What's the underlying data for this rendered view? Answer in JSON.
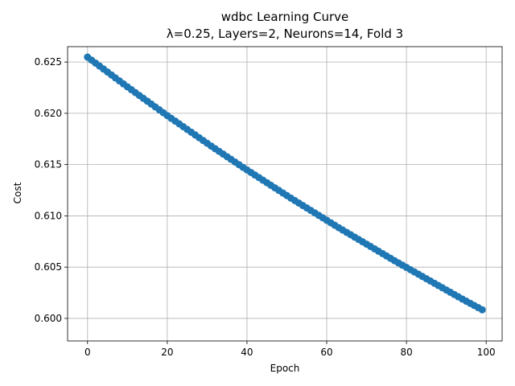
{
  "chart_data": {
    "type": "line",
    "title": "wdbc Learning Curve",
    "subtitle": "λ=0.25, Layers=2, Neurons=14, Fold 3",
    "xlabel": "Epoch",
    "ylabel": "Cost",
    "xlim": [
      -5,
      104
    ],
    "ylim": [
      0.5978,
      0.6265
    ],
    "xticks": [
      0,
      20,
      40,
      60,
      80,
      100
    ],
    "yticks": [
      0.6,
      0.605,
      0.61,
      0.615,
      0.62,
      0.625
    ],
    "ytick_labels": [
      "0.600",
      "0.605",
      "0.610",
      "0.615",
      "0.620",
      "0.625"
    ],
    "grid": true,
    "color": "#1f77b4",
    "marker": "circle",
    "series": [
      {
        "x": [
          0,
          1,
          2,
          3,
          4,
          5,
          6,
          7,
          8,
          9,
          10,
          11,
          12,
          13,
          14,
          15,
          16,
          17,
          18,
          19,
          20,
          21,
          22,
          23,
          24,
          25,
          26,
          27,
          28,
          29,
          30,
          31,
          32,
          33,
          34,
          35,
          36,
          37,
          38,
          39,
          40,
          41,
          42,
          43,
          44,
          45,
          46,
          47,
          48,
          49,
          50,
          51,
          52,
          53,
          54,
          55,
          56,
          57,
          58,
          59,
          60,
          61,
          62,
          63,
          64,
          65,
          66,
          67,
          68,
          69,
          70,
          71,
          72,
          73,
          74,
          75,
          76,
          77,
          78,
          79,
          80,
          81,
          82,
          83,
          84,
          85,
          86,
          87,
          88,
          89,
          90,
          91,
          92,
          93,
          94,
          95,
          96,
          97,
          98,
          99
        ],
        "y": [
          0.62548,
          0.62519,
          0.6249,
          0.62461,
          0.62432,
          0.62403,
          0.62374,
          0.62345,
          0.62316,
          0.62287,
          0.62258,
          0.6223,
          0.62202,
          0.62174,
          0.62146,
          0.62118,
          0.6209,
          0.62062,
          0.62034,
          0.62006,
          0.61978,
          0.61951,
          0.61924,
          0.61897,
          0.6187,
          0.61843,
          0.61816,
          0.61789,
          0.61762,
          0.61735,
          0.61708,
          0.61681,
          0.61655,
          0.61629,
          0.61603,
          0.61577,
          0.61551,
          0.61525,
          0.61499,
          0.61473,
          0.61448,
          0.61423,
          0.61398,
          0.61373,
          0.61348,
          0.61323,
          0.61298,
          0.61273,
          0.61248,
          0.61223,
          0.61198,
          0.61173,
          0.61149,
          0.61125,
          0.61101,
          0.61077,
          0.61053,
          0.61029,
          0.61005,
          0.60981,
          0.60957,
          0.60933,
          0.60909,
          0.60885,
          0.60862,
          0.60839,
          0.60816,
          0.60793,
          0.6077,
          0.60747,
          0.60724,
          0.60701,
          0.60678,
          0.60655,
          0.60632,
          0.60609,
          0.60586,
          0.60563,
          0.60541,
          0.60519,
          0.60497,
          0.60475,
          0.60453,
          0.60431,
          0.60409,
          0.60387,
          0.60365,
          0.60343,
          0.60321,
          0.60299,
          0.60277,
          0.60255,
          0.60233,
          0.60211,
          0.60189,
          0.60168,
          0.60147,
          0.60126,
          0.60105,
          0.60084
        ]
      }
    ]
  }
}
